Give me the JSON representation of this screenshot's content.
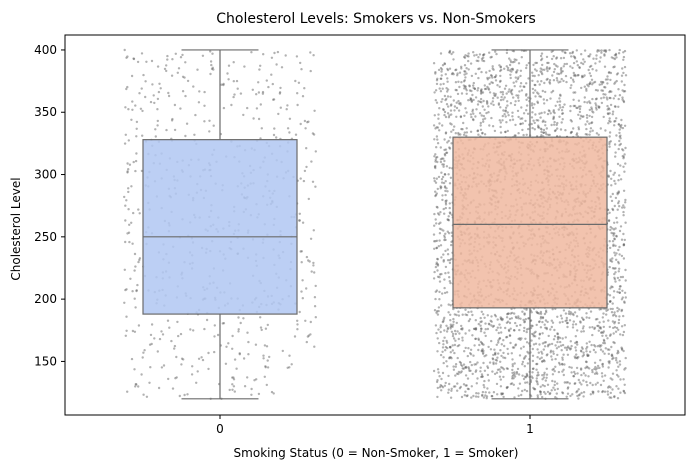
{
  "chart_data": {
    "type": "box",
    "title": "Cholesterol Levels: Smokers vs. Non-Smokers",
    "xlabel": "Smoking Status (0 = Non-Smoker, 1 = Smoker)",
    "ylabel": "Cholesterol Level",
    "categories": [
      "0",
      "1"
    ],
    "ylim": [
      107,
      412
    ],
    "yticks": [
      150,
      200,
      250,
      300,
      350,
      400
    ],
    "boxes": [
      {
        "category": "0",
        "min": 120,
        "q1": 188,
        "median": 250,
        "q3": 328,
        "max": 400,
        "color": "#b0c7f2"
      },
      {
        "category": "1",
        "min": 120,
        "q1": 193,
        "median": 260,
        "q3": 330,
        "max": 400,
        "color": "#f0b9a0"
      }
    ],
    "jitter_points": {
      "range": [
        120,
        400
      ],
      "approx_counts": [
        700,
        3500
      ],
      "color": "#555555",
      "overlay": "strip"
    },
    "grid": false,
    "legend": "none"
  }
}
